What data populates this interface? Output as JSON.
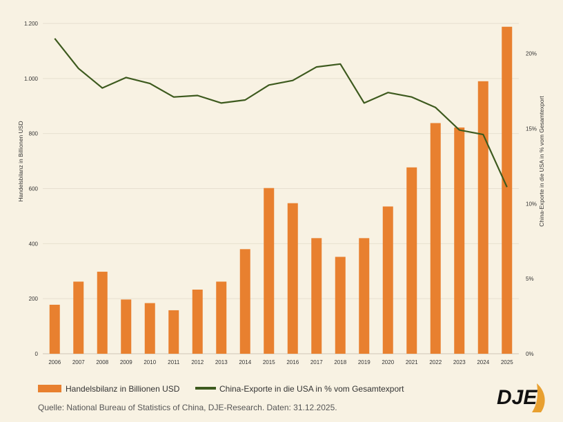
{
  "chart_data": {
    "type": "bar",
    "categories": [
      "2006",
      "2007",
      "2008",
      "2009",
      "2010",
      "2011",
      "2012",
      "2013",
      "2014",
      "2015",
      "2016",
      "2017",
      "2018",
      "2019",
      "2020",
      "2021",
      "2022",
      "2023",
      "2024",
      "2025"
    ],
    "series": [
      {
        "name": "Handelsbilanz in Billionen USD",
        "type": "bar",
        "axis": "left",
        "color": "#e8802f",
        "values": [
          178,
          262,
          298,
          197,
          184,
          158,
          233,
          262,
          380,
          602,
          547,
          420,
          352,
          420,
          535,
          677,
          838,
          822,
          990,
          1188
        ]
      },
      {
        "name": "China-Exporte in die USA in % vom Gesamtexport",
        "type": "line",
        "axis": "right",
        "color": "#3d5a1e",
        "values": [
          21.0,
          19.0,
          17.7,
          18.4,
          18.0,
          17.1,
          17.2,
          16.7,
          16.9,
          17.9,
          18.2,
          19.1,
          19.3,
          16.7,
          17.4,
          17.1,
          16.4,
          14.9,
          14.6,
          11.1
        ]
      }
    ],
    "ylabel": "Handelsbilanz in Billionen USD",
    "y2label": "China-Exporte in die USA in % vom Gesamtexport",
    "ylim": [
      0,
      1200
    ],
    "y2lim": [
      0,
      22
    ],
    "yticks": [
      0,
      200,
      400,
      600,
      800,
      1000,
      1200
    ],
    "ytick_labels": [
      "0",
      "200",
      "400",
      "600",
      "800",
      "1.000",
      "1.200"
    ],
    "y2ticks": [
      0,
      5,
      10,
      15,
      20
    ],
    "y2tick_labels": [
      "0%",
      "5%",
      "10%",
      "15%",
      "20%"
    ],
    "grid": "horizontal",
    "legend_placement": "bottom-left",
    "legend": [
      {
        "label": "Handelsbilanz in Billionen USD",
        "color": "#e8802f",
        "kind": "box"
      },
      {
        "label": "China-Exporte in die USA in % vom Gesamtexport",
        "color": "#3d5a1e",
        "kind": "line"
      }
    ]
  },
  "source": "Quelle: National Bureau of Statistics of China, DJE-Research. Daten: 31.12.2025.",
  "logo": {
    "text": "DJE",
    "accent_color": "#e8a030"
  },
  "colors": {
    "background": "#f8f2e3",
    "grid": "#e6dfcf"
  }
}
